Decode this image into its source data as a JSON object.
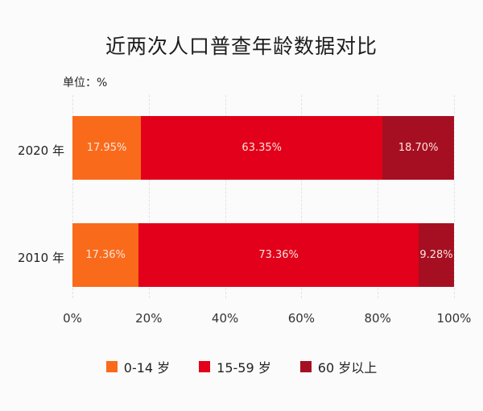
{
  "title": "近两次人口普查年龄数据对比",
  "unit_label": "单位：%",
  "colors": {
    "age_0_14": "#f96b1b",
    "age_15_59": "#e2001a",
    "age_60_plus": "#a60f22"
  },
  "chart_data": {
    "type": "bar",
    "orientation": "horizontal",
    "stacked": true,
    "title": "近两次人口普查年龄数据对比",
    "unit": "%",
    "categories": [
      "2020 年",
      "2010 年"
    ],
    "series": [
      {
        "name": "0-14 岁",
        "values": [
          17.95,
          17.36
        ],
        "labels": [
          "17.95%",
          "17.36%"
        ]
      },
      {
        "name": "15-59 岁",
        "values": [
          63.35,
          73.36
        ],
        "labels": [
          "63.35%",
          "73.36%"
        ]
      },
      {
        "name": "60 岁以上",
        "values": [
          18.7,
          9.28
        ],
        "labels": [
          "18.70%",
          "9.28%"
        ]
      }
    ],
    "xlim": [
      0,
      100
    ],
    "xticks": [
      "0%",
      "20%",
      "40%",
      "60%",
      "80%",
      "100%"
    ],
    "grid": "vertical dashed",
    "legend_position": "bottom"
  },
  "legend": [
    {
      "label": "0-14 岁"
    },
    {
      "label": "15-59 岁"
    },
    {
      "label": "60 岁以上"
    }
  ]
}
